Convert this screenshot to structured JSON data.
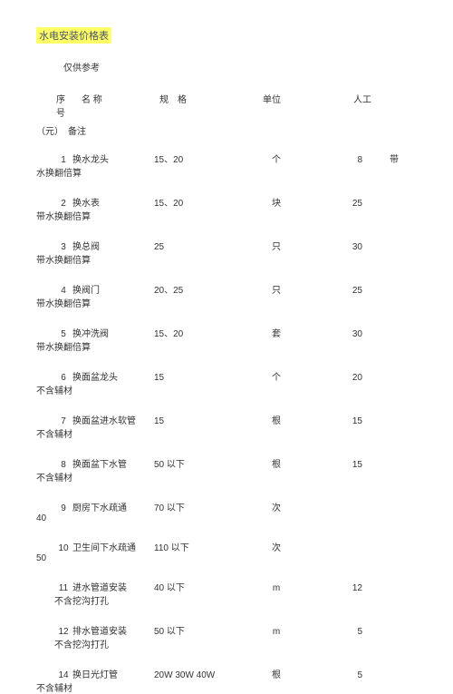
{
  "title": "水电安装价格表",
  "subtitle": "仅供参考",
  "header": {
    "c1": "序号",
    "c2": "名 称",
    "c3": "规　格",
    "c4": "单位",
    "c5": "人工",
    "line2": "（元）　备注"
  },
  "rows": [
    {
      "idx": "1",
      "name": "换水龙头",
      "spec": "15、20",
      "unit": "个",
      "labor": "8",
      "extra": "带",
      "note": "水换翻倍算"
    },
    {
      "idx": "2",
      "name": "换水表",
      "spec": "15、20",
      "unit": "块",
      "labor": "25",
      "extra": "",
      "note": "带水换翻倍算"
    },
    {
      "idx": "3",
      "name": "换总阀",
      "spec": "25",
      "unit": "只",
      "labor": "30",
      "extra": "",
      "note": "带水换翻倍算"
    },
    {
      "idx": "4",
      "name": "换阀门",
      "spec": "20、25",
      "unit": "只",
      "labor": "25",
      "extra": "",
      "note": "带水换翻倍算"
    },
    {
      "idx": "5",
      "name": "换冲洗阀",
      "spec": "15、20",
      "unit": "套",
      "labor": "30",
      "extra": "",
      "note": "带水换翻倍算"
    },
    {
      "idx": "6",
      "name": "换面盆龙头",
      "spec": "15",
      "unit": "个",
      "labor": "20",
      "extra": "",
      "note": "不含辅材"
    },
    {
      "idx": "7",
      "name": "换面盆进水软管",
      "spec": "15",
      "unit": "根",
      "labor": "15",
      "extra": "",
      "note": "不含辅材"
    },
    {
      "idx": "8",
      "name": "换面盆下水管",
      "spec": "50 以下",
      "unit": "根",
      "labor": "15",
      "extra": "",
      "note": "不含辅材"
    },
    {
      "idx": "9",
      "name": "厨房下水疏通",
      "spec": "70 以下",
      "unit": "次",
      "labor": "",
      "extra": "",
      "note": "40"
    },
    {
      "idx": "10",
      "name": "卫生间下水疏通",
      "spec": "110 以下",
      "unit": "次",
      "labor": "",
      "extra": "",
      "note": "50"
    },
    {
      "idx": "11",
      "name": "进水管道安装",
      "spec": "40 以下",
      "unit": "m",
      "labor": "12",
      "extra": "",
      "note": "　　不含挖沟打孔"
    },
    {
      "idx": "12",
      "name": "排水管道安装",
      "spec": "50 以下",
      "unit": "m",
      "labor": "5",
      "extra": "",
      "note": "　　不含挖沟打孔"
    },
    {
      "idx": "14",
      "name": "换日光灯管",
      "spec": "20W  30W  40W",
      "unit": "根",
      "labor": "5",
      "extra": "",
      "note": "不含辅材"
    }
  ],
  "colors": {
    "highlight": "#ffff66",
    "text": "#333333",
    "bg": "#ffffff"
  }
}
